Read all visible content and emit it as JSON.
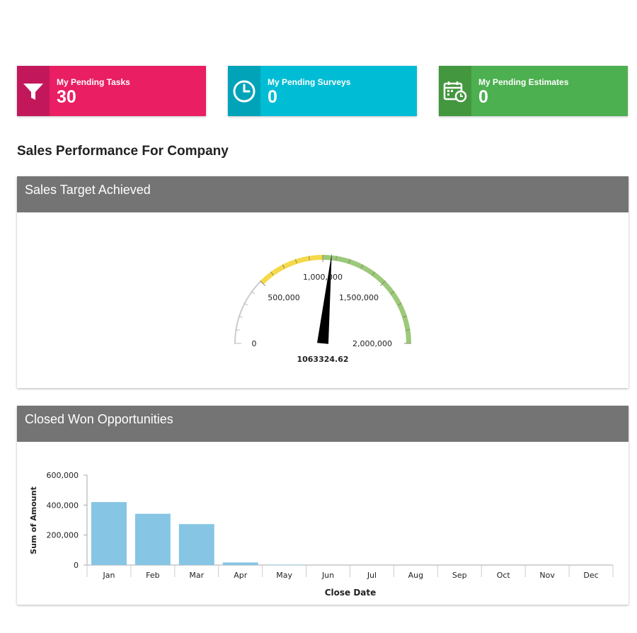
{
  "tiles": [
    {
      "label": "My Pending Tasks",
      "value": "30",
      "icon": "filter-icon",
      "color": "#e91e63"
    },
    {
      "label": "My Pending Surveys",
      "value": "0",
      "icon": "clock-icon",
      "color": "#00bcd4"
    },
    {
      "label": "My Pending Estimates",
      "value": "0",
      "icon": "calendar-clock-icon",
      "color": "#4caf50"
    }
  ],
  "section_title": "Sales Performance For Company",
  "gauge_panel": {
    "title": "Sales Target Achieved",
    "ticks": [
      "0",
      "500,000",
      "1,000,000",
      "1,500,000",
      "2,000,000"
    ],
    "value_label": "1063324.62",
    "value": 1063324.62,
    "min": 0,
    "max": 2000000,
    "band_colors": {
      "low": "#cccccc",
      "mid": "#f5d94a",
      "high": "#9cc97a"
    },
    "bands": [
      {
        "from": 0,
        "to": 500000,
        "color": "#cccccc"
      },
      {
        "from": 500000,
        "to": 1000000,
        "color": "#f5d94a"
      },
      {
        "from": 1000000,
        "to": 2000000,
        "color": "#9cc97a"
      }
    ]
  },
  "bar_panel": {
    "title": "Closed Won Opportunities"
  },
  "chart_data": {
    "type": "bar",
    "categories": [
      "Jan",
      "Feb",
      "Mar",
      "Apr",
      "May",
      "Jun",
      "Jul",
      "Aug",
      "Sep",
      "Oct",
      "Nov",
      "Dec"
    ],
    "values": [
      420000,
      342000,
      273000,
      17000,
      3000,
      0,
      0,
      0,
      0,
      0,
      0,
      0
    ],
    "xlabel": "Close Date",
    "ylabel": "Sum of Amount",
    "yticks": [
      "0",
      "200,000",
      "400,000",
      "600,000"
    ],
    "ylim": [
      0,
      600000
    ],
    "bar_color": "#86c5e3",
    "grid": false
  }
}
